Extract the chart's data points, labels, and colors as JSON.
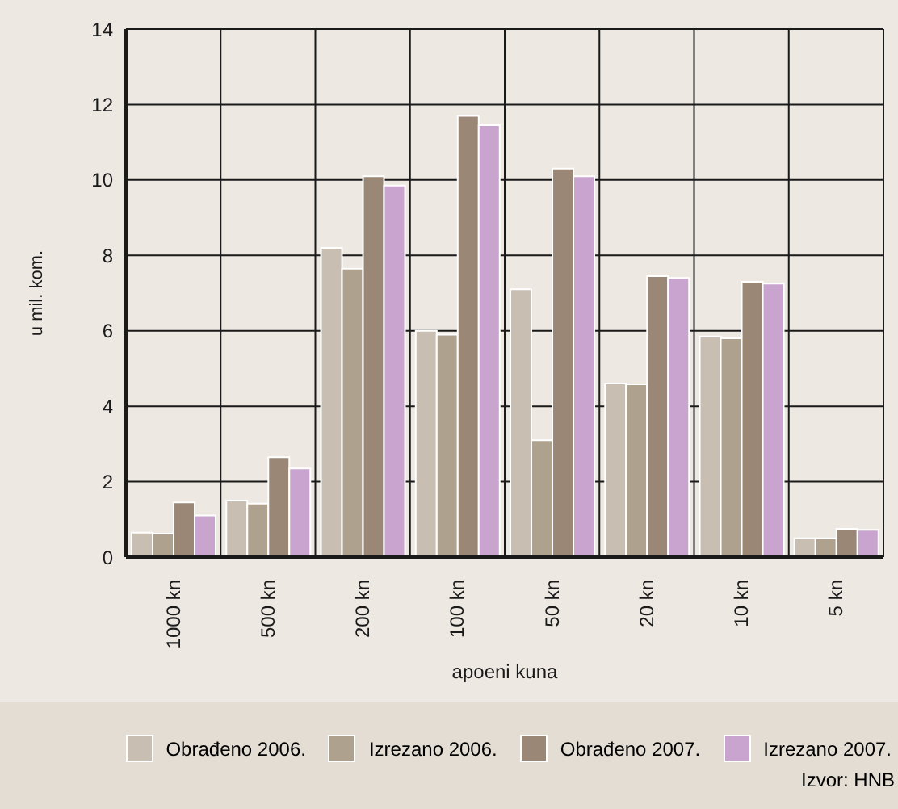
{
  "chart_data": {
    "type": "bar",
    "ylabel": "u mil. kom.",
    "xlabel": "apoeni kuna",
    "categories": [
      "1000 kn",
      "500 kn",
      "200 kn",
      "100 kn",
      "50 kn",
      "20 kn",
      "10 kn",
      "5 kn"
    ],
    "series": [
      {
        "name": "Obrađeno 2006.",
        "color": "#c8beb2",
        "values": [
          0.65,
          1.5,
          8.2,
          6.0,
          7.1,
          4.6,
          5.85,
          0.5
        ]
      },
      {
        "name": "Izrezano 2006.",
        "color": "#aea28e",
        "values": [
          0.62,
          1.42,
          7.65,
          5.9,
          3.1,
          4.58,
          5.8,
          0.5
        ]
      },
      {
        "name": "Obrađeno 2007.",
        "color": "#9a8776",
        "values": [
          1.45,
          2.65,
          10.1,
          11.7,
          10.3,
          7.45,
          7.3,
          0.75
        ]
      },
      {
        "name": "Izrezano 2007.",
        "color": "#c8a4cf",
        "values": [
          1.1,
          2.35,
          9.85,
          11.45,
          10.1,
          7.4,
          7.25,
          0.72
        ]
      }
    ],
    "ylim": [
      0,
      14
    ],
    "yticks": [
      0,
      2,
      4,
      6,
      8,
      10,
      12,
      14
    ],
    "grid": true,
    "legend": "bottom",
    "annotations": [
      "Izvor: HNB"
    ]
  }
}
